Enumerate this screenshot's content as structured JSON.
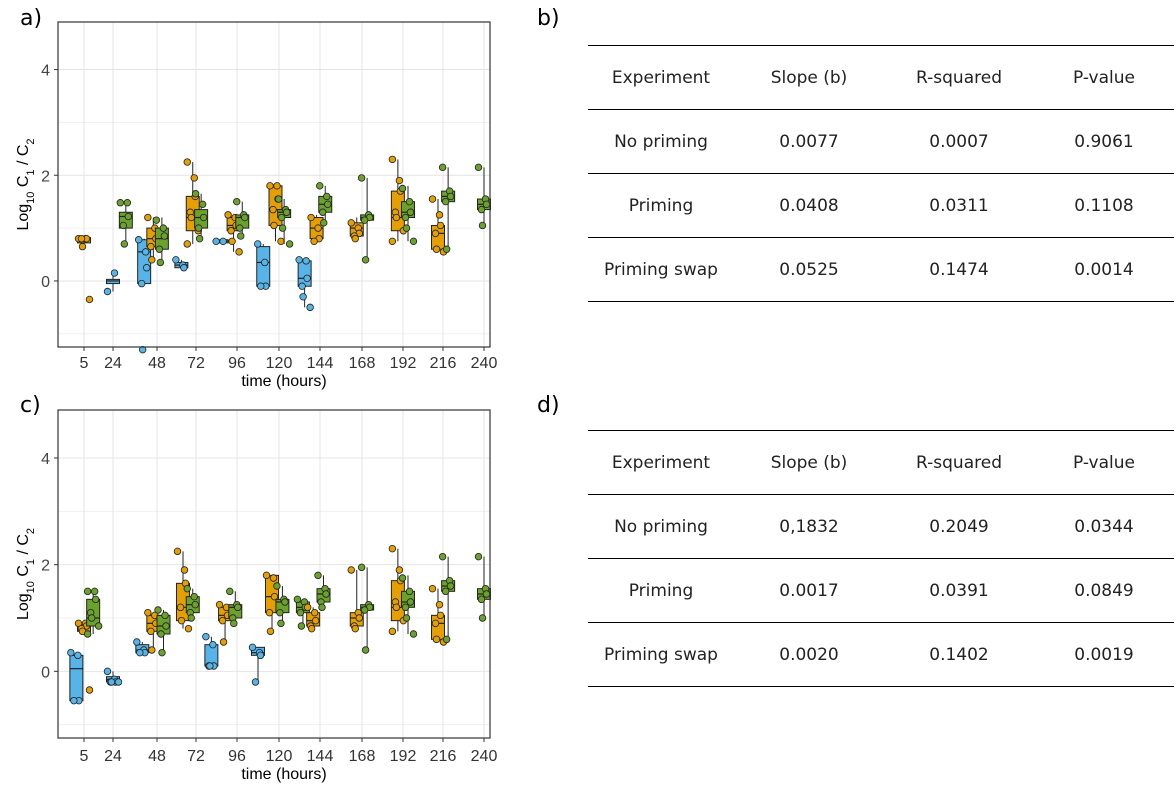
{
  "panels": {
    "a": "a)",
    "b": "b)",
    "c": "c)",
    "d": "d)"
  },
  "colors": {
    "orange": "#E69F00",
    "green": "#6AA22C",
    "blue": "#56B4E9"
  },
  "chart_data": [
    {
      "type": "box",
      "panel": "a",
      "xlabel": "time (hours)",
      "ylabel": "Log10 C1 / C2",
      "ylim": [
        -1.25,
        4.9
      ],
      "x_ticks": [
        "5",
        "24",
        "48",
        "72",
        "96",
        "120",
        "144",
        "168",
        "192",
        "216",
        "240"
      ],
      "y_ticks": [
        0,
        2,
        4
      ],
      "grid": true,
      "boxes": [
        {
          "x": 5,
          "color": "orange",
          "q1": 0.72,
          "median": 0.8,
          "q3": 0.82,
          "lo": 0.65,
          "hi": 0.82,
          "points": [
            0.8,
            0.8,
            0.8,
            0.8,
            0.65,
            -0.35
          ]
        },
        {
          "x": 24,
          "color": "blue",
          "q1": -0.05,
          "median": 0.0,
          "q3": 0.03,
          "lo": -0.2,
          "hi": 0.15,
          "points": [
            -0.2,
            0.15
          ]
        },
        {
          "x": 31,
          "color": "green",
          "q1": 1.0,
          "median": 1.22,
          "q3": 1.3,
          "lo": 0.7,
          "hi": 1.5,
          "points": [
            1.48,
            1.48,
            1.22,
            1.05,
            0.7
          ]
        },
        {
          "x": 41,
          "color": "blue",
          "q1": -0.05,
          "median": 0.55,
          "q3": 0.78,
          "lo": -0.05,
          "hi": 0.8,
          "points": [
            0.78,
            0.55,
            0.25,
            -0.05,
            -1.3
          ]
        },
        {
          "x": 46,
          "color": "orange",
          "q1": 0.65,
          "median": 0.8,
          "q3": 1.0,
          "lo": 0.4,
          "hi": 1.2,
          "points": [
            1.2,
            1.0,
            0.8,
            0.65,
            0.4
          ]
        },
        {
          "x": 51,
          "color": "green",
          "q1": 0.6,
          "median": 0.8,
          "q3": 1.0,
          "lo": 0.35,
          "hi": 1.2,
          "points": [
            1.15,
            1.0,
            0.85,
            0.6,
            0.35
          ]
        },
        {
          "x": 63,
          "color": "blue",
          "q1": 0.25,
          "median": 0.3,
          "q3": 0.35,
          "lo": 0.2,
          "hi": 0.4,
          "points": [
            0.4,
            0.3,
            0.25
          ]
        },
        {
          "x": 70,
          "color": "orange",
          "q1": 0.95,
          "median": 1.2,
          "q3": 1.6,
          "lo": 0.7,
          "hi": 2.25,
          "points": [
            2.25,
            1.95,
            1.6,
            1.3,
            1.2,
            0.95,
            0.7
          ]
        },
        {
          "x": 75,
          "color": "green",
          "q1": 1.0,
          "median": 1.2,
          "q3": 1.35,
          "lo": 0.8,
          "hi": 1.65,
          "points": [
            1.65,
            1.45,
            1.2,
            1.0,
            0.8
          ]
        },
        {
          "x": 87,
          "color": "blue",
          "q1": 0.72,
          "median": 0.75,
          "q3": 0.78,
          "lo": 0.72,
          "hi": 0.78,
          "points": [
            0.75,
            0.75
          ]
        },
        {
          "x": 94,
          "color": "orange",
          "q1": 0.95,
          "median": 1.05,
          "q3": 1.2,
          "lo": 0.55,
          "hi": 1.25,
          "points": [
            1.25,
            1.2,
            1.05,
            0.95,
            0.75,
            0.55
          ]
        },
        {
          "x": 99,
          "color": "green",
          "q1": 1.0,
          "median": 1.2,
          "q3": 1.25,
          "lo": 0.85,
          "hi": 1.5,
          "points": [
            1.5,
            1.25,
            1.2,
            1.0,
            0.85
          ]
        },
        {
          "x": 111,
          "color": "blue",
          "q1": -0.1,
          "median": 0.35,
          "q3": 0.65,
          "lo": -0.1,
          "hi": 0.7,
          "points": [
            0.7,
            0.35,
            -0.1,
            -0.1
          ]
        },
        {
          "x": 118,
          "color": "orange",
          "q1": 1.05,
          "median": 1.35,
          "q3": 1.8,
          "lo": 0.75,
          "hi": 1.8,
          "points": [
            1.8,
            1.8,
            1.55,
            1.35,
            1.05,
            0.75
          ]
        },
        {
          "x": 123,
          "color": "green",
          "q1": 1.2,
          "median": 1.3,
          "q3": 1.35,
          "lo": 0.7,
          "hi": 1.55,
          "points": [
            1.55,
            1.35,
            1.3,
            1.2,
            1.0,
            0.7
          ]
        },
        {
          "x": 135,
          "color": "blue",
          "q1": -0.1,
          "median": 0.05,
          "q3": 0.38,
          "lo": -0.5,
          "hi": 0.4,
          "points": [
            0.4,
            0.38,
            0.05,
            -0.1,
            -0.3,
            -0.5
          ]
        },
        {
          "x": 142,
          "color": "orange",
          "q1": 0.8,
          "median": 1.0,
          "q3": 1.2,
          "lo": 0.75,
          "hi": 1.25,
          "points": [
            1.2,
            1.0,
            0.8,
            0.75
          ]
        },
        {
          "x": 147,
          "color": "green",
          "q1": 1.3,
          "median": 1.45,
          "q3": 1.6,
          "lo": 1.1,
          "hi": 1.8,
          "points": [
            1.8,
            1.6,
            1.45,
            1.3,
            1.1
          ]
        },
        {
          "x": 165,
          "color": "orange",
          "q1": 0.85,
          "median": 1.0,
          "q3": 1.1,
          "lo": 0.8,
          "hi": 1.2,
          "points": [
            1.1,
            1.0,
            0.9,
            0.85,
            0.8
          ]
        },
        {
          "x": 171,
          "color": "green",
          "q1": 1.15,
          "median": 1.2,
          "q3": 1.25,
          "lo": 0.4,
          "hi": 1.95,
          "points": [
            1.95,
            1.25,
            1.2,
            1.15,
            0.4
          ]
        },
        {
          "x": 189,
          "color": "orange",
          "q1": 0.95,
          "median": 1.2,
          "q3": 1.7,
          "lo": 0.75,
          "hi": 2.3,
          "points": [
            2.3,
            1.9,
            1.7,
            1.3,
            1.2,
            0.95,
            0.75
          ]
        },
        {
          "x": 195,
          "color": "green",
          "q1": 1.2,
          "median": 1.3,
          "q3": 1.5,
          "lo": 0.75,
          "hi": 1.8,
          "points": [
            1.75,
            1.5,
            1.3,
            1.2,
            1.0,
            0.75
          ]
        },
        {
          "x": 213,
          "color": "orange",
          "q1": 0.6,
          "median": 0.9,
          "q3": 1.05,
          "lo": 0.55,
          "hi": 1.55,
          "points": [
            1.55,
            1.25,
            1.05,
            0.9,
            0.6,
            0.55
          ]
        },
        {
          "x": 219,
          "color": "green",
          "q1": 1.5,
          "median": 1.6,
          "q3": 1.7,
          "lo": 0.6,
          "hi": 2.15,
          "points": [
            2.15,
            1.7,
            1.6,
            1.5,
            0.6
          ]
        },
        {
          "x": 240,
          "color": "green",
          "q1": 1.35,
          "median": 1.45,
          "q3": 1.55,
          "lo": 1.05,
          "hi": 2.15,
          "points": [
            2.15,
            1.55,
            1.45,
            1.35,
            1.05
          ]
        }
      ]
    },
    {
      "type": "box",
      "panel": "c",
      "xlabel": "time (hours)",
      "ylabel": "Log10 C1 / C2",
      "ylim": [
        -1.25,
        4.9
      ],
      "x_ticks": [
        "5",
        "24",
        "48",
        "72",
        "96",
        "120",
        "144",
        "168",
        "192",
        "216",
        "240"
      ],
      "y_ticks": [
        0,
        2,
        4
      ],
      "grid": true,
      "boxes": [
        {
          "x": 0,
          "color": "blue",
          "q1": -0.55,
          "median": 0.05,
          "q3": 0.3,
          "lo": -0.55,
          "hi": 0.35,
          "points": [
            0.35,
            0.3,
            -0.55,
            -0.55
          ]
        },
        {
          "x": 5,
          "color": "orange",
          "q1": 0.75,
          "median": 0.85,
          "q3": 0.9,
          "lo": 0.75,
          "hi": 0.92,
          "points": [
            0.9,
            0.9,
            0.85,
            0.8,
            0.75,
            -0.35
          ]
        },
        {
          "x": 11,
          "color": "green",
          "q1": 0.85,
          "median": 1.0,
          "q3": 1.35,
          "lo": 0.7,
          "hi": 1.5,
          "points": [
            1.5,
            1.5,
            1.35,
            1.1,
            1.0,
            0.85,
            0.7
          ]
        },
        {
          "x": 24,
          "color": "blue",
          "q1": -0.2,
          "median": -0.15,
          "q3": -0.1,
          "lo": -0.2,
          "hi": 0.0,
          "points": [
            0.0,
            -0.15,
            -0.2,
            -0.2,
            -0.2,
            -0.2
          ]
        },
        {
          "x": 40,
          "color": "blue",
          "q1": 0.35,
          "median": 0.4,
          "q3": 0.5,
          "lo": 0.35,
          "hi": 0.55,
          "points": [
            0.55,
            0.4,
            0.35,
            0.35
          ]
        },
        {
          "x": 46,
          "color": "orange",
          "q1": 0.75,
          "median": 0.9,
          "q3": 1.05,
          "lo": 0.4,
          "hi": 1.1,
          "points": [
            1.1,
            1.05,
            0.9,
            0.75,
            0.4
          ]
        },
        {
          "x": 52,
          "color": "green",
          "q1": 0.7,
          "median": 0.85,
          "q3": 1.05,
          "lo": 0.35,
          "hi": 1.15,
          "points": [
            1.15,
            1.05,
            0.85,
            0.7,
            0.35
          ]
        },
        {
          "x": 64,
          "color": "orange",
          "q1": 0.95,
          "median": 1.2,
          "q3": 1.65,
          "lo": 0.8,
          "hi": 2.25,
          "points": [
            2.25,
            1.9,
            1.65,
            1.2,
            0.95,
            0.8
          ]
        },
        {
          "x": 70,
          "color": "green",
          "q1": 1.1,
          "median": 1.25,
          "q3": 1.4,
          "lo": 1.0,
          "hi": 1.55,
          "points": [
            1.55,
            1.4,
            1.25,
            1.1,
            1.0
          ]
        },
        {
          "x": 81,
          "color": "blue",
          "q1": 0.1,
          "median": 0.1,
          "q3": 0.5,
          "lo": 0.1,
          "hi": 0.65,
          "points": [
            0.65,
            0.5,
            0.1,
            0.1,
            0.1
          ]
        },
        {
          "x": 89,
          "color": "orange",
          "q1": 0.95,
          "median": 1.05,
          "q3": 1.2,
          "lo": 0.55,
          "hi": 1.25,
          "points": [
            1.25,
            1.2,
            1.05,
            0.95,
            0.55
          ]
        },
        {
          "x": 95,
          "color": "green",
          "q1": 1.0,
          "median": 1.2,
          "q3": 1.25,
          "lo": 0.9,
          "hi": 1.5,
          "points": [
            1.5,
            1.25,
            1.2,
            1.0,
            0.9
          ]
        },
        {
          "x": 108,
          "color": "blue",
          "q1": 0.3,
          "median": 0.35,
          "q3": 0.45,
          "lo": -0.2,
          "hi": 0.45,
          "points": [
            0.45,
            0.35,
            0.3,
            -0.2
          ]
        },
        {
          "x": 116,
          "color": "orange",
          "q1": 1.1,
          "median": 1.4,
          "q3": 1.8,
          "lo": 0.75,
          "hi": 1.8,
          "points": [
            1.8,
            1.75,
            1.4,
            1.1,
            0.75
          ]
        },
        {
          "x": 122,
          "color": "green",
          "q1": 1.1,
          "median": 1.3,
          "q3": 1.35,
          "lo": 0.9,
          "hi": 1.6,
          "points": [
            1.6,
            1.35,
            1.3,
            1.1,
            0.9
          ]
        },
        {
          "x": 134,
          "color": "green",
          "q1": 1.1,
          "median": 1.2,
          "q3": 1.3,
          "lo": 0.85,
          "hi": 1.35,
          "points": [
            1.35,
            1.3,
            1.2,
            1.1,
            0.85
          ]
        },
        {
          "x": 140,
          "color": "orange",
          "q1": 0.85,
          "median": 0.95,
          "q3": 1.1,
          "lo": 0.8,
          "hi": 1.2,
          "points": [
            1.2,
            1.1,
            0.95,
            0.85,
            0.8
          ]
        },
        {
          "x": 146,
          "color": "green",
          "q1": 1.3,
          "median": 1.45,
          "q3": 1.55,
          "lo": 1.2,
          "hi": 1.8,
          "points": [
            1.8,
            1.55,
            1.45,
            1.3,
            1.2
          ]
        },
        {
          "x": 165,
          "color": "orange",
          "q1": 0.85,
          "median": 1.0,
          "q3": 1.1,
          "lo": 0.8,
          "hi": 1.9,
          "points": [
            1.9,
            1.1,
            1.0,
            0.85,
            0.8
          ]
        },
        {
          "x": 171,
          "color": "green",
          "q1": 1.15,
          "median": 1.2,
          "q3": 1.25,
          "lo": 0.4,
          "hi": 1.95,
          "points": [
            1.95,
            1.25,
            1.2,
            1.15,
            0.4
          ]
        },
        {
          "x": 189,
          "color": "orange",
          "q1": 0.95,
          "median": 1.2,
          "q3": 1.7,
          "lo": 0.75,
          "hi": 2.3,
          "points": [
            2.3,
            1.9,
            1.7,
            1.3,
            1.2,
            0.95,
            0.75
          ]
        },
        {
          "x": 195,
          "color": "green",
          "q1": 1.2,
          "median": 1.3,
          "q3": 1.5,
          "lo": 0.7,
          "hi": 1.8,
          "points": [
            1.75,
            1.5,
            1.3,
            1.2,
            1.0,
            0.7
          ]
        },
        {
          "x": 213,
          "color": "orange",
          "q1": 0.6,
          "median": 0.9,
          "q3": 1.05,
          "lo": 0.55,
          "hi": 1.55,
          "points": [
            1.55,
            1.25,
            1.05,
            0.9,
            0.6,
            0.55
          ]
        },
        {
          "x": 219,
          "color": "green",
          "q1": 1.5,
          "median": 1.6,
          "q3": 1.7,
          "lo": 0.6,
          "hi": 2.15,
          "points": [
            2.15,
            1.7,
            1.6,
            1.5,
            0.6
          ]
        },
        {
          "x": 240,
          "color": "green",
          "q1": 1.35,
          "median": 1.45,
          "q3": 1.55,
          "lo": 1.0,
          "hi": 2.15,
          "points": [
            2.15,
            1.55,
            1.45,
            1.35,
            1.0
          ]
        }
      ]
    },
    {
      "type": "table",
      "panel": "b",
      "headers": [
        "Experiment",
        "Slope (b)",
        "R-squared",
        "P-value"
      ],
      "rows": [
        [
          "No priming",
          "0.0077",
          "0.0007",
          "0.9061"
        ],
        [
          "Priming",
          "0.0408",
          "0.0311",
          "0.1108"
        ],
        [
          "Priming swap",
          "0.0525",
          "0.1474",
          "0.0014"
        ]
      ]
    },
    {
      "type": "table",
      "panel": "d",
      "headers": [
        "Experiment",
        "Slope (b)",
        "R-squared",
        "P-value"
      ],
      "rows": [
        [
          "No priming",
          "0,1832",
          "0.2049",
          "0.0344"
        ],
        [
          "Priming",
          "0.0017",
          "0.0391",
          "0.0849"
        ],
        [
          "Priming swap",
          "0.0020",
          "0.1402",
          "0.0019"
        ]
      ]
    }
  ]
}
